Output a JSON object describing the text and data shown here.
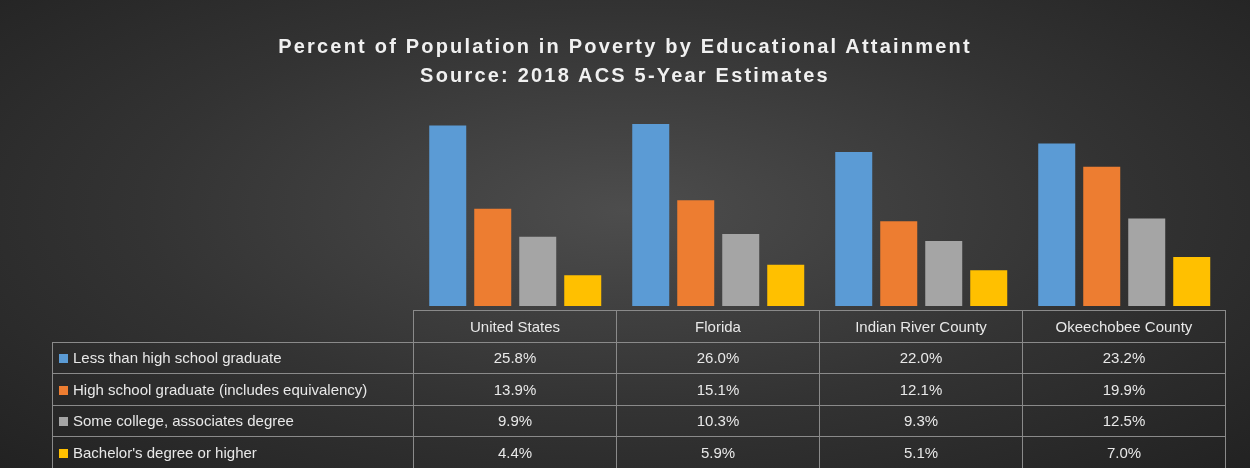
{
  "chart_data": {
    "type": "bar",
    "title": "Percent of Population in Poverty by Educational Attainment",
    "subtitle": "Source: 2018 ACS 5-Year Estimates",
    "categories": [
      "United States",
      "Florida",
      "Indian River County",
      "Okeechobee County"
    ],
    "legend": "bottom",
    "grid": false,
    "series": [
      {
        "name": "Less than high school graduate",
        "color": "#5b9bd5",
        "values": [
          25.8,
          26.0,
          22.0,
          23.2
        ],
        "value_labels": [
          "25.8%",
          "26.0%",
          "22.0%",
          "23.2%"
        ]
      },
      {
        "name": "High school graduate (includes equivalency)",
        "color": "#ed7d31",
        "values": [
          13.9,
          15.1,
          12.1,
          19.9
        ],
        "value_labels": [
          "13.9%",
          "15.1%",
          "12.1%",
          "19.9%"
        ]
      },
      {
        "name": "Some college, associates degree",
        "color": "#a5a5a5",
        "values": [
          9.9,
          10.3,
          9.3,
          12.5
        ],
        "value_labels": [
          "9.9%",
          "10.3%",
          "9.3%",
          "12.5%"
        ]
      },
      {
        "name": "Bachelor's degree or higher",
        "color": "#ffc000",
        "values": [
          4.4,
          5.9,
          5.1,
          7.0
        ],
        "value_labels": [
          "4.4%",
          "5.9%",
          "5.1%",
          "7.0%"
        ]
      }
    ]
  }
}
